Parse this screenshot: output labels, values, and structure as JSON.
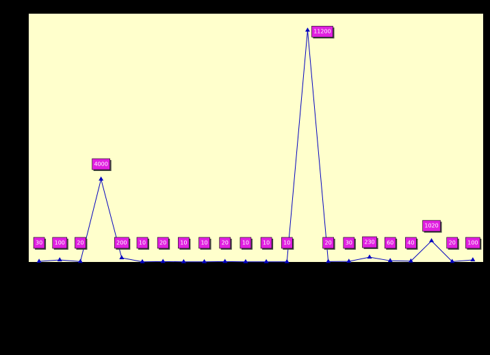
{
  "chart_data": {
    "type": "line",
    "color": "#0000c0",
    "label_color": "#e020e0",
    "values": [
      30,
      100,
      20,
      4000,
      200,
      10,
      20,
      10,
      10,
      20,
      10,
      10,
      10,
      11200,
      20,
      30,
      230,
      60,
      40,
      1020,
      20,
      100
    ],
    "ylim": [
      0,
      12000
    ]
  }
}
